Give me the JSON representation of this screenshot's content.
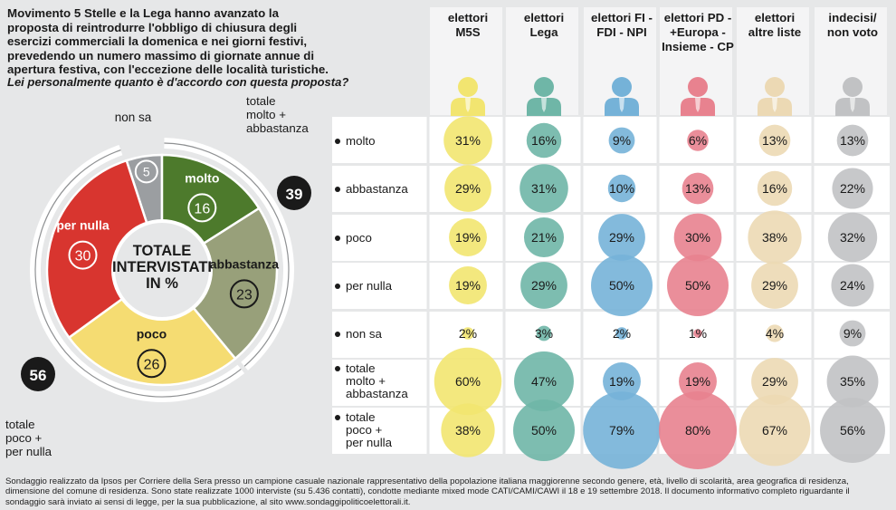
{
  "title": "Movimento 5 Stelle e la Lega hanno avanzato la proposta di reintrodurre l'obbligo di chiusura degli esercizi commerciali la domenica e nei giorni festivi, prevedendo un numero massimo di giornate annue di apertura festiva, con l'eccezione delle località turistiche.",
  "question": "Lei personalmente quanto è d'accordo con questa proposta?",
  "donut": {
    "center_label": [
      "TOTALE",
      "INTERVISTATI",
      "IN %"
    ],
    "outer_labels": {
      "top_right": [
        "totale",
        "molto +",
        "abbastanza"
      ],
      "top_right_value": "39",
      "bottom_left": [
        "totale",
        "poco +",
        "per nulla"
      ],
      "bottom_left_value": "56",
      "non_sa_label": "non sa"
    }
  },
  "chart_data": [
    {
      "type": "pie",
      "title": "TOTALE INTERVISTATI IN %",
      "categories": [
        "molto",
        "abbastanza",
        "poco",
        "per nulla",
        "non sa"
      ],
      "values": [
        16,
        23,
        26,
        30,
        5
      ],
      "colors": [
        "#4d7a2c",
        "#98a07a",
        "#f5dc72",
        "#d8352f",
        "#9b9ea1"
      ],
      "labels": [
        "molto",
        "abbastanza",
        "poco",
        "per nulla",
        "non sa"
      ],
      "totals": {
        "totale molto + abbastanza": 39,
        "totale poco + per nulla": 56
      }
    },
    {
      "type": "table",
      "columns": [
        {
          "label": [
            "elettori",
            "M5S"
          ],
          "color": "#f2e570"
        },
        {
          "label": [
            "elettori",
            "Lega"
          ],
          "color": "#6fb6a7"
        },
        {
          "label": [
            "elettori FI -",
            "FDI - NPI"
          ],
          "color": "#75b2d8"
        },
        {
          "label": [
            "elettori PD -",
            "+Europa -",
            "Insieme - CP"
          ],
          "color": "#e8828f"
        },
        {
          "label": [
            "elettori",
            "altre liste"
          ],
          "color": "#ecd9b4"
        },
        {
          "label": [
            "indecisi/",
            "non voto"
          ],
          "color": "#c1c2c4"
        }
      ],
      "rows": [
        {
          "label": [
            "molto"
          ],
          "values": [
            31,
            16,
            9,
            6,
            13,
            13
          ]
        },
        {
          "label": [
            "abbastanza"
          ],
          "values": [
            29,
            31,
            10,
            13,
            16,
            22
          ]
        },
        {
          "label": [
            "poco"
          ],
          "values": [
            19,
            21,
            29,
            30,
            38,
            32
          ]
        },
        {
          "label": [
            "per nulla"
          ],
          "values": [
            19,
            29,
            50,
            50,
            29,
            24
          ]
        },
        {
          "label": [
            "non sa"
          ],
          "values": [
            2,
            3,
            2,
            1,
            4,
            9
          ]
        },
        {
          "label": [
            "totale",
            "molto +",
            "abbastanza"
          ],
          "values": [
            60,
            47,
            19,
            19,
            29,
            35
          ]
        },
        {
          "label": [
            "totale",
            "poco +",
            "per nulla"
          ],
          "values": [
            38,
            50,
            79,
            80,
            67,
            56
          ]
        }
      ],
      "unit": "%"
    }
  ],
  "footnote": "Sondaggio realizzato da Ipsos per Corriere della Sera presso un campione casuale nazionale rappresentativo della popolazione italiana maggiorenne secondo genere, età, livello di scolarità, area geografica di residenza, dimensione del comune di residenza. Sono state realizzate 1000 interviste (su 5.436 contatti), condotte mediante mixed mode CATI/CAMI/CAWI il 18 e 19 settembre 2018. Il documento informativo completo riguardante il sondaggio sarà inviato ai sensi di legge, per la sua pubblicazione, al sito www.sondaggipoliticoelettorali.it."
}
